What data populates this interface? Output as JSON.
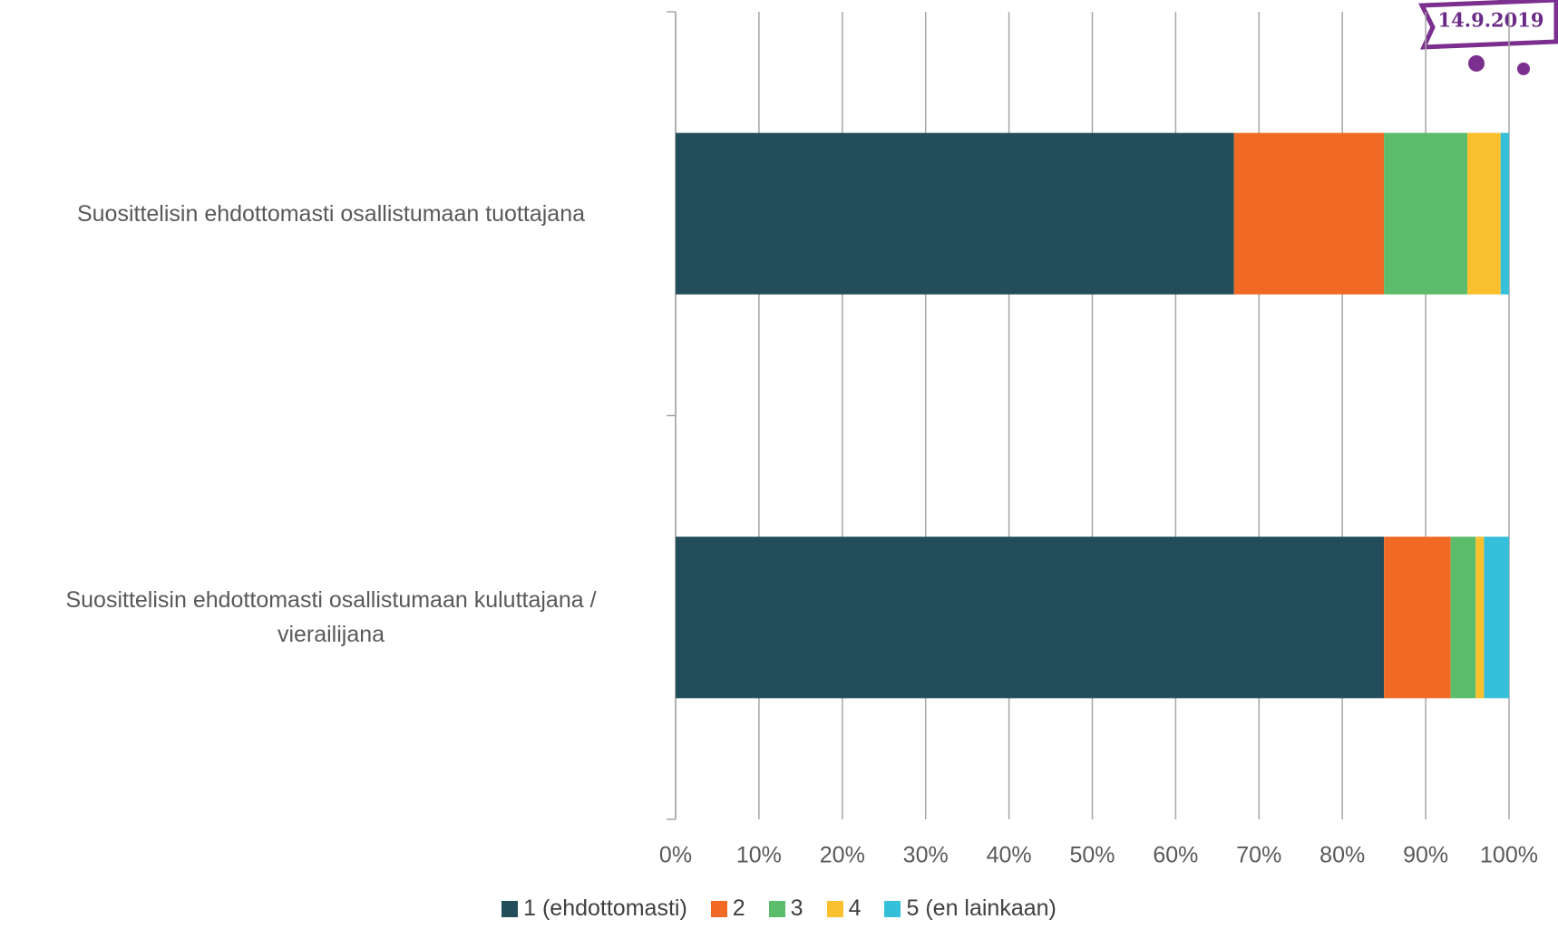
{
  "chart_data": {
    "type": "stacked-bar-horizontal",
    "categories": [
      "Suosittelisin ehdottomasti osallistumaan tuottajana",
      "Suosittelisin ehdottomasti osallistumaan kuluttajana / vierailijana"
    ],
    "series": [
      {
        "name": "1 (ehdottomasti)",
        "color": "#234d5b",
        "values": [
          67,
          85
        ]
      },
      {
        "name": "2",
        "color": "#f06a25",
        "values": [
          18,
          8
        ]
      },
      {
        "name": "3",
        "color": "#5bbd6b",
        "values": [
          10,
          3
        ]
      },
      {
        "name": "4",
        "color": "#fbc02d",
        "values": [
          4,
          1
        ]
      },
      {
        "name": "5 (en lainkaan)",
        "color": "#35bfd9",
        "values": [
          1,
          3
        ]
      }
    ],
    "xlim": [
      0,
      100
    ],
    "xticks": [
      {
        "value": 0,
        "label": "0%"
      },
      {
        "value": 10,
        "label": "10%"
      },
      {
        "value": 20,
        "label": "20%"
      },
      {
        "value": 30,
        "label": "30%"
      },
      {
        "value": 40,
        "label": "40%"
      },
      {
        "value": 50,
        "label": "50%"
      },
      {
        "value": 60,
        "label": "60%"
      },
      {
        "value": 70,
        "label": "70%"
      },
      {
        "value": 80,
        "label": "80%"
      },
      {
        "value": 90,
        "label": "90%"
      },
      {
        "value": 100,
        "label": "100%"
      }
    ],
    "grid": true,
    "legend": "bottom"
  },
  "badge": {
    "text": "14.9.2019"
  }
}
